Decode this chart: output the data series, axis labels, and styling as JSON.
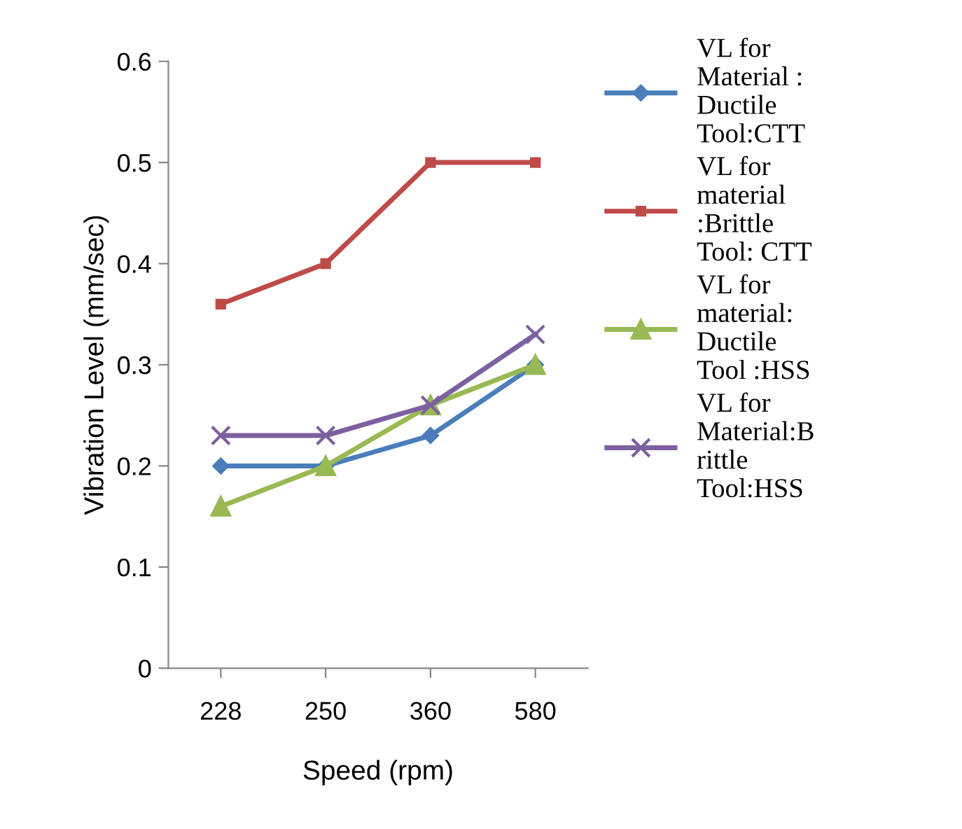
{
  "chart_data": {
    "type": "line",
    "xlabel": "Speed (rpm)",
    "ylabel": "Vibration Level (mm/sec)",
    "categories": [
      "228",
      "250",
      "360",
      "580"
    ],
    "series": [
      {
        "name": "VL for\nMaterial :\nDuctile\nTool:CTT",
        "color": "#4a7ebb",
        "marker": "diamond",
        "values": [
          0.2,
          0.2,
          0.23,
          0.3
        ]
      },
      {
        "name": "VL for\nmaterial\n:Brittle\nTool: CTT",
        "color": "#be4b48",
        "marker": "square",
        "values": [
          0.36,
          0.4,
          0.5,
          0.5
        ]
      },
      {
        "name": "VL for\nmaterial:\nDuctile\nTool :HSS",
        "color": "#98b954",
        "marker": "triangle",
        "values": [
          0.16,
          0.2,
          0.26,
          0.3
        ]
      },
      {
        "name": "VL for\nMaterial:B\nrittle\nTool:HSS",
        "color": "#7d60a0",
        "marker": "cross",
        "values": [
          0.23,
          0.23,
          0.26,
          0.33
        ]
      }
    ],
    "ylim": [
      0,
      0.6
    ],
    "yticks": [
      0,
      0.1,
      0.2,
      0.3,
      0.4,
      0.5,
      0.6
    ],
    "grid": false,
    "legend": "top right"
  }
}
